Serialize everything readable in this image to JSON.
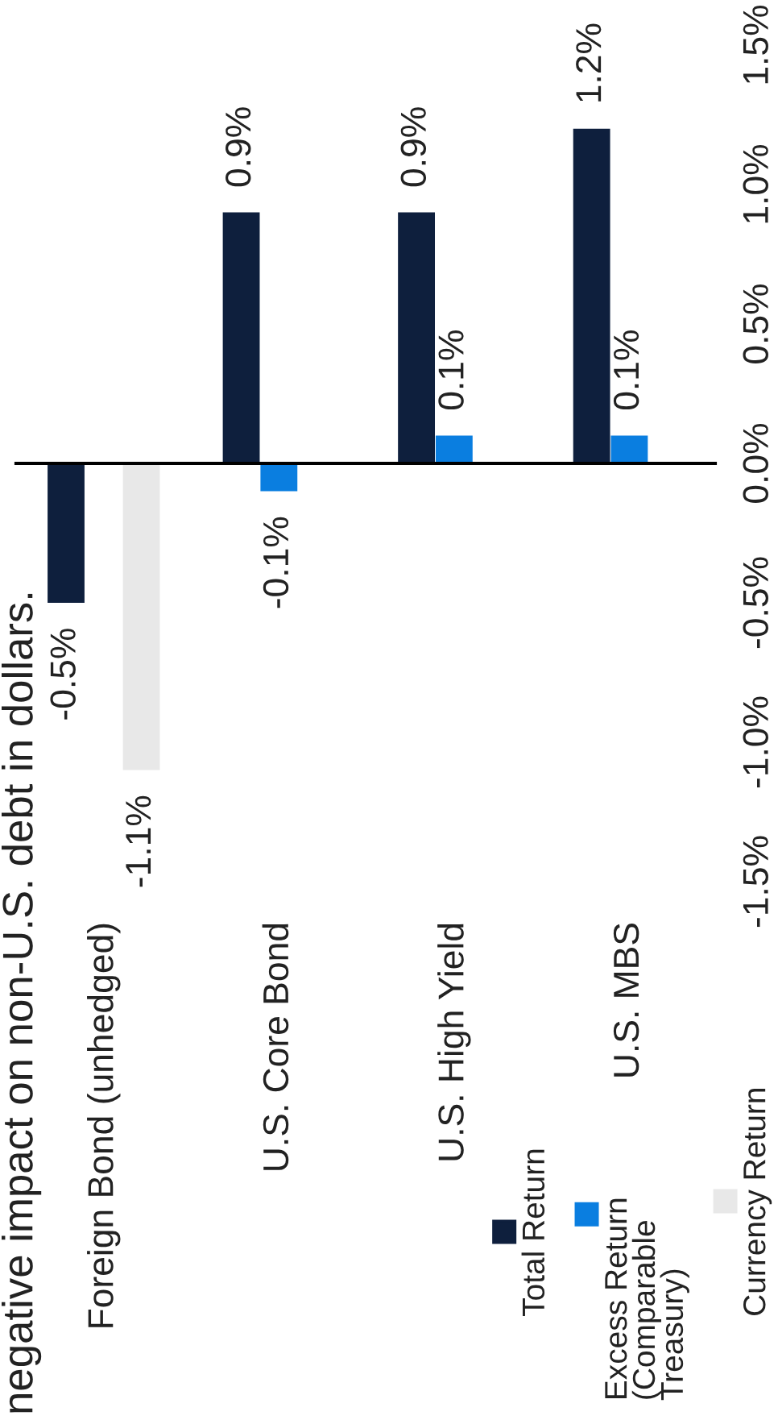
{
  "chart_data": {
    "type": "bar",
    "categories": [
      "Foreign Bond (unhedged)",
      "U.S. Core Bond",
      "U.S. High Yield",
      "U.S. MBS"
    ],
    "series": [
      {
        "name": "Total Return",
        "color": "#0e1f3d",
        "values": [
          -0.5,
          0.9,
          0.9,
          1.2
        ],
        "value_labels": [
          "-0.5%",
          "0.9%",
          "0.9%",
          "1.2%"
        ]
      },
      {
        "name": "Excess Return\n(Comparable\nTreasury)",
        "color": "#0a7ee0",
        "values": [
          null,
          -0.1,
          0.1,
          0.1
        ],
        "value_labels": [
          null,
          "-0.1%",
          "0.1%",
          "0.1%"
        ]
      },
      {
        "name": "Currency Return",
        "color": "#e8e8e8",
        "values": [
          -1.1,
          null,
          null,
          null
        ],
        "value_labels": [
          "-1.1%",
          null,
          null,
          null
        ]
      }
    ],
    "ylim": [
      -1.5,
      1.5
    ],
    "yticks": [
      {
        "value": -1.5,
        "label": "-1.5%"
      },
      {
        "value": -1.0,
        "label": "-1.0%"
      },
      {
        "value": -0.5,
        "label": "-0.5%"
      },
      {
        "value": 0.0,
        "label": "0.0%"
      },
      {
        "value": 0.5,
        "label": "0.5%"
      },
      {
        "value": 1.0,
        "label": "1.0%"
      },
      {
        "value": 1.5,
        "label": "1.5%"
      }
    ],
    "legend": "bottom right",
    "annotations": [
      "negative impact on non-U.S. debt in dollars."
    ]
  }
}
